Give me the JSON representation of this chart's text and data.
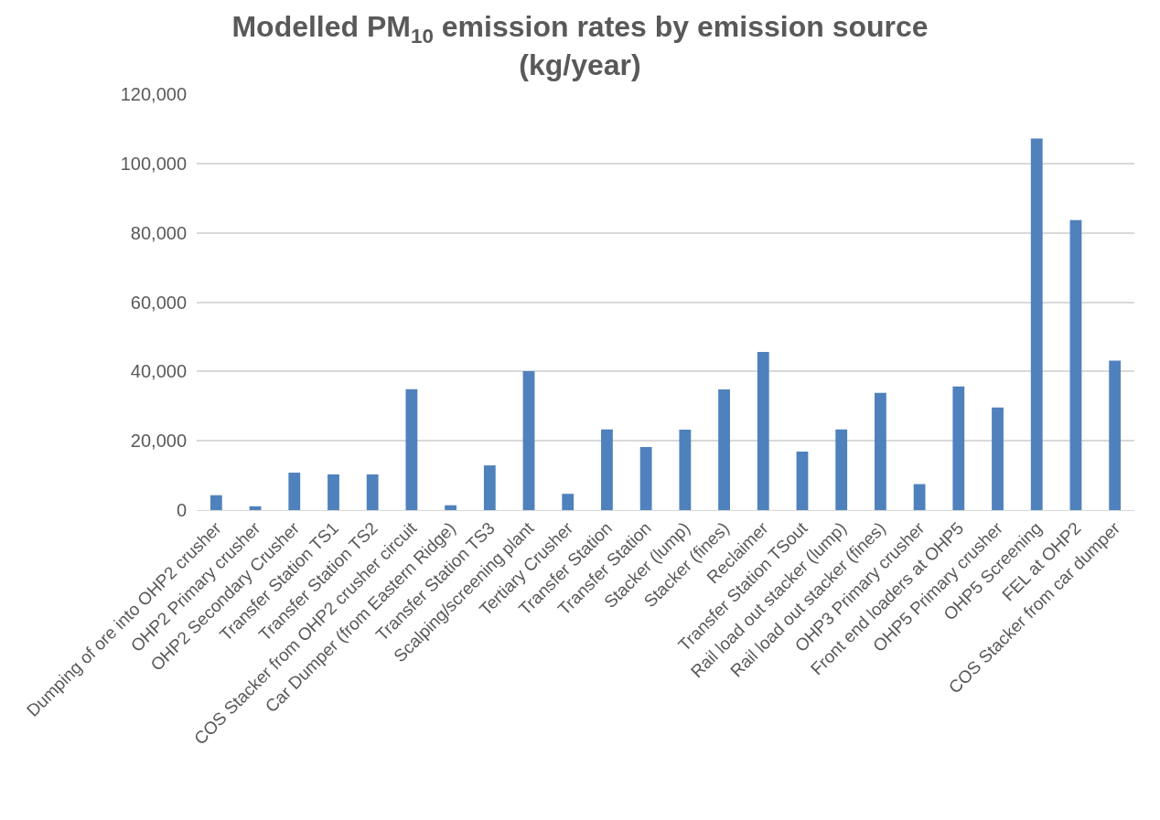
{
  "chart_data": {
    "type": "bar",
    "title": "Modelled PM$_{10}$ emission rates by emission source\n(kg/year)",
    "categories": [
      "Dumping of ore into OHP2 crusher",
      "OHP2 Primary crusher",
      "OHP2 Secondary Crusher",
      "Transfer Station TS1",
      "Transfer Station TS2",
      "COS Stacker from OHP2 crusher circuit",
      "Car Dumper (from Eastern Ridge)",
      "Transfer Station TS3",
      "Scalping/screening plant",
      "Tertiary Crusher",
      "Transfer Station",
      "Transfer Station",
      "Stacker (lump)",
      "Stacker (fines)",
      "Reclaimer",
      "Transfer Station TSout",
      "Rail load out stacker (lump)",
      "Rail load out stacker (fines)",
      "OHP3 Primary crusher",
      "Front end loaders at OHP5",
      "OHP5 Primary crusher",
      "OHP5 Screening",
      "FEL at OHP2",
      "COS Stacker from car dumper"
    ],
    "values": [
      4300,
      1100,
      10800,
      10300,
      10300,
      34900,
      1400,
      12900,
      40100,
      4700,
      23300,
      18200,
      23200,
      34800,
      45600,
      16900,
      23300,
      33800,
      7500,
      35700,
      29600,
      107200,
      83700,
      43100
    ],
    "color": "#4f81bd",
    "ylim": [
      0,
      120000
    ],
    "yticks": [
      {
        "value": 0,
        "label": "0"
      },
      {
        "value": 20000,
        "label": "20,000"
      },
      {
        "value": 40000,
        "label": "40,000"
      },
      {
        "value": 60000,
        "label": "60,000"
      },
      {
        "value": 80000,
        "label": "80,000"
      },
      {
        "value": 100000,
        "label": "100,000"
      },
      {
        "value": 120000,
        "label": "120,000"
      }
    ],
    "grid": "y"
  }
}
